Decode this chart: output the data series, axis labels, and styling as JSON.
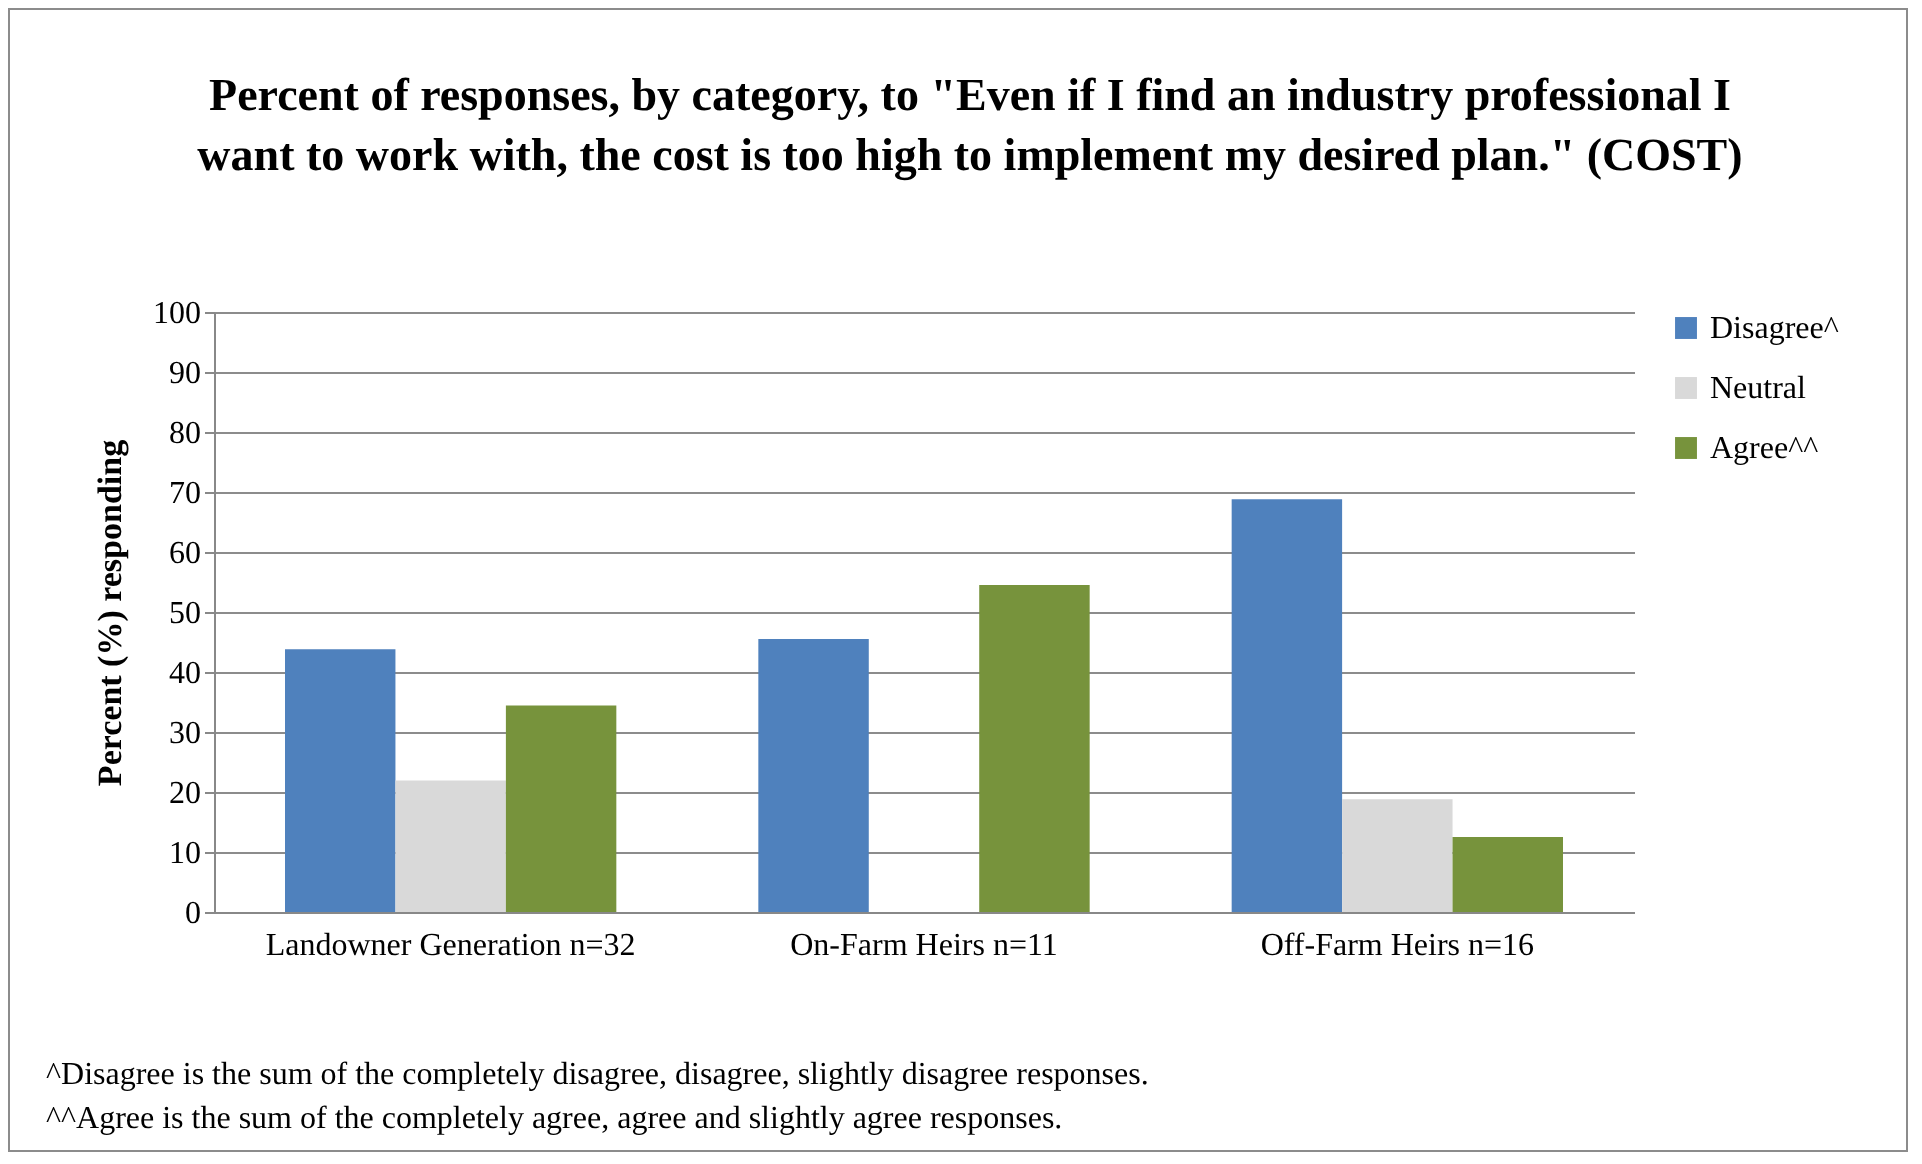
{
  "chart_data": {
    "type": "bar",
    "title": "Percent of responses, by category, to \"Even if I find an industry professional I want to work with, the cost is too high to implement my desired plan.\" (COST)",
    "ylabel": "Percent (%) responding",
    "categories": [
      "Landowner Generation n=32",
      "On-Farm Heirs n=11",
      "Off-Farm Heirs n=16"
    ],
    "series": [
      {
        "name": "Disagree^",
        "color": "#4f81bd",
        "values": [
          43.8,
          45.5,
          68.8
        ]
      },
      {
        "name": "Neutral",
        "color": "#d9d9d9",
        "values": [
          21.9,
          0,
          18.8
        ]
      },
      {
        "name": "Agree^^",
        "color": "#77933c",
        "values": [
          34.4,
          54.5,
          12.5
        ]
      }
    ],
    "ylim": [
      0,
      100
    ],
    "yticks": [
      0,
      10,
      20,
      30,
      40,
      50,
      60,
      70,
      80,
      90,
      100
    ],
    "grid": "y",
    "legend": "right",
    "annotations": [
      "^Disagree is the sum of the completely disagree, disagree, slightly disagree responses.",
      "^^Agree is the sum of the completely agree, agree and slightly agree responses."
    ]
  }
}
